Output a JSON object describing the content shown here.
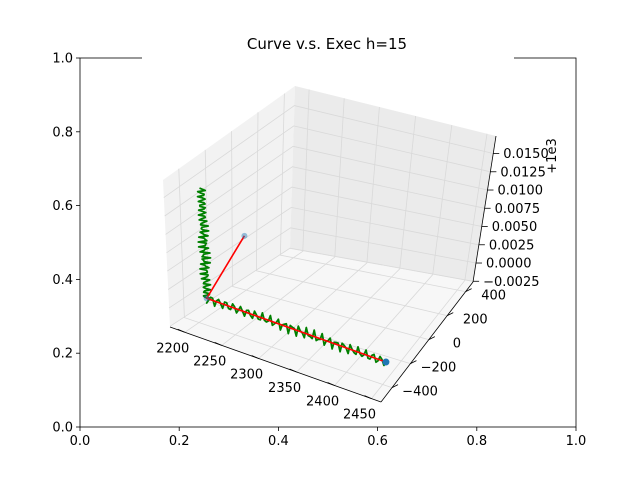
{
  "chart_data": {
    "type": "line",
    "title": "Curve v.s. Exec h=15",
    "projection": "3d",
    "outer_axes": {
      "x_ticks": [
        "0.0",
        "0.2",
        "0.4",
        "0.6",
        "0.8",
        "1.0"
      ],
      "y_ticks": [
        "0.0",
        "0.2",
        "0.4",
        "0.6",
        "0.8",
        "1.0"
      ],
      "xlim": [
        0,
        1
      ],
      "ylim": [
        0,
        1
      ]
    },
    "axis3d": {
      "x_ticks": [
        "2200",
        "2250",
        "2300",
        "2350",
        "2400",
        "2450"
      ],
      "y_ticks": [
        "−400",
        "−200",
        "0",
        "200",
        "400"
      ],
      "z_ticks": [
        "−0.0025",
        "0.0000",
        "0.0025",
        "0.0050",
        "0.0075",
        "0.0100",
        "0.0125",
        "0.0150"
      ],
      "z_offset_label": "+1e3",
      "grid": true
    },
    "series": [
      {
        "role": "planned-path",
        "color": "#ff0000",
        "points": [
          {
            "x": 2210,
            "y": -60,
            "z": 1000.006
          },
          {
            "x": 2200,
            "y": -330,
            "z": 1000.0
          },
          {
            "x": 2440,
            "y": -330,
            "z": 1000.0
          }
        ]
      },
      {
        "role": "executed-curve",
        "color": "#008000",
        "oscillating": true,
        "points": [
          {
            "x": 2440,
            "y": -330,
            "z": 1000.0
          },
          {
            "x": 2200,
            "y": -330,
            "z": 1000.0
          },
          {
            "x": 2200,
            "y": -330,
            "z": 1000.015
          }
        ]
      }
    ],
    "markers": [
      {
        "x": 2210,
        "y": -60,
        "z": 1000.006,
        "color": "#1f77b4",
        "faded": true
      },
      {
        "x": 2200,
        "y": -330,
        "z": 1000.0,
        "color": "#1f77b4",
        "faded": true
      },
      {
        "x": 2440,
        "y": -330,
        "z": 1000.0,
        "color": "#1f77b4",
        "faded": false
      }
    ],
    "colors": {
      "pane_left": "#f2f2f2",
      "pane_back": "#ebebeb",
      "pane_floor": "#f7f7f7",
      "grid": "#d9d9d9"
    }
  }
}
